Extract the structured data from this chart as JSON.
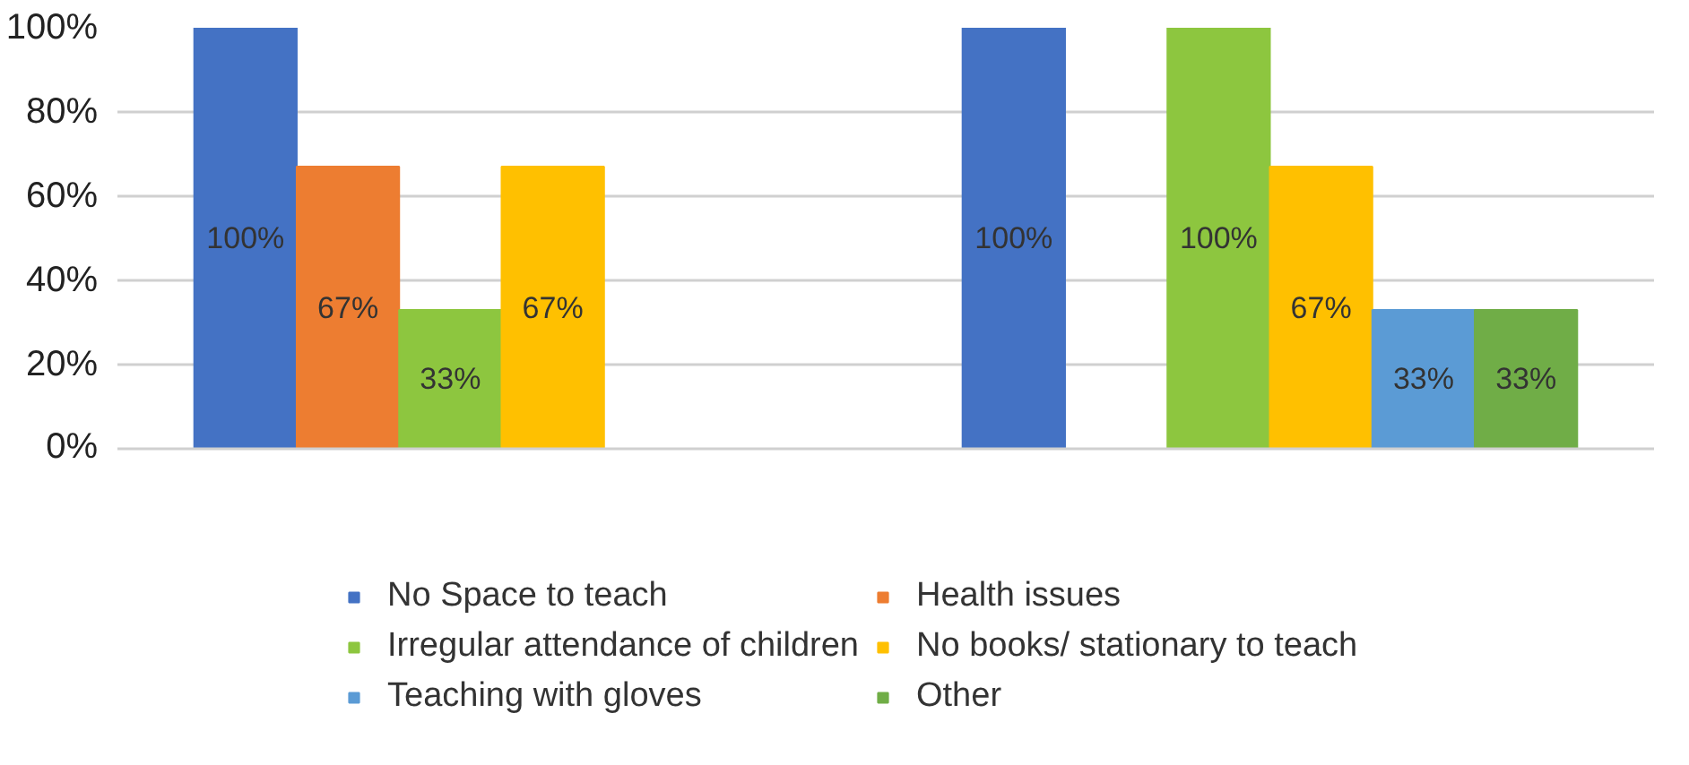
{
  "chart_data": {
    "type": "bar",
    "categories": [
      null,
      null
    ],
    "series": [
      {
        "name": "No Space to teach",
        "color": "#4472c4",
        "values": [
          100,
          100
        ],
        "value_labels": [
          "100%",
          "100%"
        ]
      },
      {
        "name": "Health issues",
        "color": "#ed7d31",
        "values": [
          67,
          null
        ],
        "value_labels": [
          "67%",
          null
        ]
      },
      {
        "name": "Irregular attendance of children",
        "color": "#8dc63f",
        "values": [
          33,
          100
        ],
        "value_labels": [
          "33%",
          "100%"
        ]
      },
      {
        "name": "No books/ stationary to teach",
        "color": "#ffc000",
        "values": [
          67,
          67
        ],
        "value_labels": [
          "67%",
          "67%"
        ]
      },
      {
        "name": "Teaching with gloves",
        "color": "#5b9bd5",
        "values": [
          null,
          33
        ],
        "value_labels": [
          null,
          "33%"
        ]
      },
      {
        "name": "Other",
        "color": "#70ad47",
        "values": [
          null,
          33
        ],
        "value_labels": [
          null,
          "33%"
        ]
      }
    ],
    "ylim": [
      0,
      100
    ],
    "yticks": [
      {
        "value": 0,
        "label": "0%"
      },
      {
        "value": 20,
        "label": "20%"
      },
      {
        "value": 40,
        "label": "40%"
      },
      {
        "value": 60,
        "label": "60%"
      },
      {
        "value": 80,
        "label": "80%"
      },
      {
        "value": 100,
        "label": "100%"
      }
    ],
    "grid": "y",
    "legend": "bottom",
    "tick_labels": "y"
  }
}
